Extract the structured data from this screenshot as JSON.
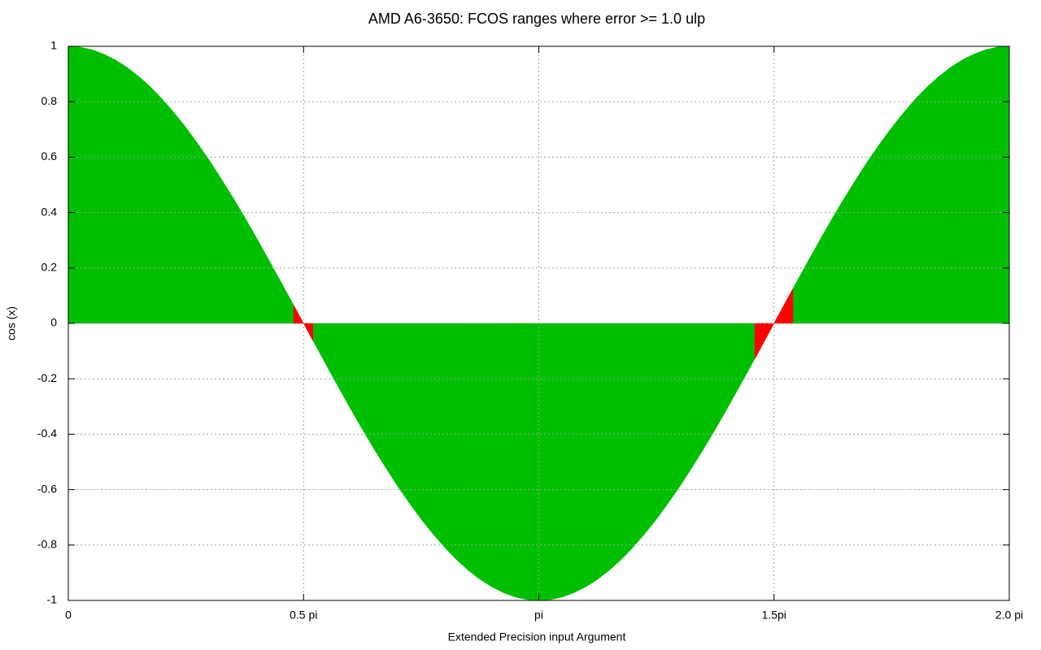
{
  "chart_data": {
    "type": "area",
    "title": "AMD A6-3650: FCOS ranges where error >= 1.0 ulp",
    "x_label": "Extended Precision input Argument",
    "y_label": "cos (x)",
    "xlim": [
      0,
      2
    ],
    "ylim": [
      -1,
      1
    ],
    "xticks": [
      0,
      {
        "value": 0.5,
        "label": "0.5 pi"
      },
      {
        "value": 1,
        "label": "pi"
      },
      {
        "value": 1.5,
        "label": "1.5pi"
      },
      {
        "value": 2,
        "label": "2.0 pi"
      }
    ],
    "yticks": [
      -1,
      -0.8,
      -0.6,
      -0.4,
      -0.2,
      0,
      0.2,
      0.4,
      0.6,
      0.8,
      1
    ],
    "grid": true,
    "series": [
      {
        "color": "#00bf00",
        "x": [
          0,
          0.025,
          0.05,
          0.075,
          0.1,
          0.125,
          0.15,
          0.175,
          0.2,
          0.225,
          0.25,
          0.275,
          0.3,
          0.325,
          0.35,
          0.375,
          0.4,
          0.425,
          0.45,
          0.475,
          0.5,
          0.525,
          0.55,
          0.575,
          0.6,
          0.625,
          0.65,
          0.675,
          0.7,
          0.725,
          0.75,
          0.775,
          0.8,
          0.825,
          0.85,
          0.875,
          0.9,
          0.925,
          0.95,
          0.975,
          1,
          1.025,
          1.05,
          1.075,
          1.1,
          1.125,
          1.15,
          1.175,
          1.2,
          1.225,
          1.25,
          1.275,
          1.3,
          1.325,
          1.35,
          1.375,
          1.4,
          1.425,
          1.45,
          1.475,
          1.5,
          1.525,
          1.55,
          1.575,
          1.6,
          1.625,
          1.65,
          1.675,
          1.7,
          1.725,
          1.75,
          1.775,
          1.8,
          1.825,
          1.85,
          1.875,
          1.9,
          1.925,
          1.95,
          1.975,
          2
        ],
        "values": [
          1,
          0.997,
          0.988,
          0.972,
          0.951,
          0.924,
          0.891,
          0.853,
          0.809,
          0.76,
          0.707,
          0.649,
          0.588,
          0.522,
          0.454,
          0.383,
          0.309,
          0.233,
          0.156,
          0.078,
          0,
          -0.078,
          -0.156,
          -0.233,
          -0.309,
          -0.383,
          -0.454,
          -0.522,
          -0.588,
          -0.649,
          -0.707,
          -0.76,
          -0.809,
          -0.853,
          -0.891,
          -0.924,
          -0.951,
          -0.972,
          -0.988,
          -0.997,
          -1,
          -0.997,
          -0.988,
          -0.972,
          -0.951,
          -0.924,
          -0.891,
          -0.853,
          -0.809,
          -0.76,
          -0.707,
          -0.649,
          -0.588,
          -0.522,
          -0.454,
          -0.383,
          -0.309,
          -0.233,
          -0.156,
          -0.078,
          0,
          0.078,
          0.156,
          0.233,
          0.309,
          0.383,
          0.454,
          0.522,
          0.588,
          0.649,
          0.707,
          0.76,
          0.809,
          0.853,
          0.891,
          0.924,
          0.951,
          0.972,
          0.988,
          0.997,
          1
        ]
      },
      {
        "color": "#ff0000",
        "x": [
          0.479,
          0.5,
          0.52,
          null,
          1.459,
          1.5,
          1.54
        ],
        "values": [
          0.066,
          0,
          -0.063,
          null,
          -0.129,
          0,
          0.125
        ]
      }
    ]
  }
}
